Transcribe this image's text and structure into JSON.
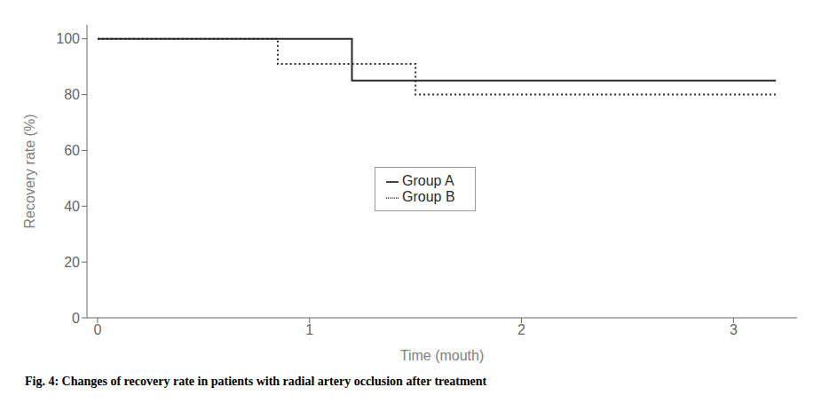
{
  "chart_data": {
    "type": "line",
    "title": "Fig. 4: Changes of recovery rate in patients with radial artery occlusion after treatment",
    "xlabel": "Time (mouth)",
    "ylabel": "Recovery rate (%)",
    "series": [
      {
        "name": "Group A",
        "color": "#2b2b2b",
        "line_style": "solid",
        "x": [
          0,
          1.2,
          1.2,
          3.2
        ],
        "values": [
          100,
          100,
          85,
          85
        ]
      },
      {
        "name": "Group B",
        "color": "#2b2b2b",
        "line_style": "dotted",
        "x": [
          0,
          0.85,
          0.85,
          1.5,
          1.5,
          3.2
        ],
        "values": [
          100,
          100,
          91,
          91,
          80,
          80
        ]
      }
    ],
    "xlim": [
      -0.05,
      3.3
    ],
    "ylim": [
      0,
      105
    ],
    "xticks": [
      0,
      1,
      2,
      3
    ],
    "yticks": [
      0,
      20,
      40,
      60,
      80,
      100
    ],
    "grid": false,
    "legend": "center"
  }
}
